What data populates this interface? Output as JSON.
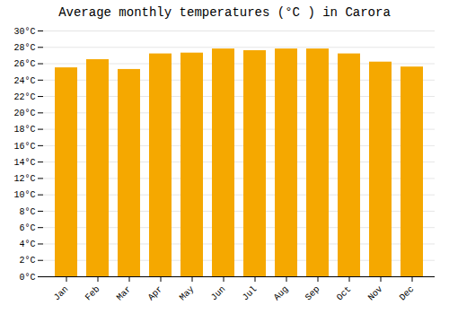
{
  "chart_data": {
    "type": "bar",
    "title": "Average monthly temperatures (°C ) in Carora",
    "categories": [
      "Jan",
      "Feb",
      "Mar",
      "Apr",
      "May",
      "Jun",
      "Jul",
      "Aug",
      "Sep",
      "Oct",
      "Nov",
      "Dec"
    ],
    "values": [
      25.5,
      26.5,
      25.3,
      27.2,
      27.3,
      27.8,
      27.6,
      27.8,
      27.8,
      27.2,
      26.2,
      25.6
    ],
    "color": "#F5A800",
    "ylim": [
      0,
      30
    ],
    "yticks": [
      {
        "value": 0,
        "label": "0°C"
      },
      {
        "value": 2,
        "label": "2°C"
      },
      {
        "value": 4,
        "label": "4°C"
      },
      {
        "value": 6,
        "label": "6°C"
      },
      {
        "value": 8,
        "label": "8°C"
      },
      {
        "value": 10,
        "label": "10°C"
      },
      {
        "value": 12,
        "label": "12°C"
      },
      {
        "value": 14,
        "label": "14°C"
      },
      {
        "value": 16,
        "label": "16°C"
      },
      {
        "value": 18,
        "label": "18°C"
      },
      {
        "value": 20,
        "label": "20°C"
      },
      {
        "value": 22,
        "label": "22°C"
      },
      {
        "value": 24,
        "label": "24°C"
      },
      {
        "value": 26,
        "label": "26°C"
      },
      {
        "value": 28,
        "label": "28°C"
      },
      {
        "value": 30,
        "label": "30°C"
      }
    ],
    "grid": true
  }
}
